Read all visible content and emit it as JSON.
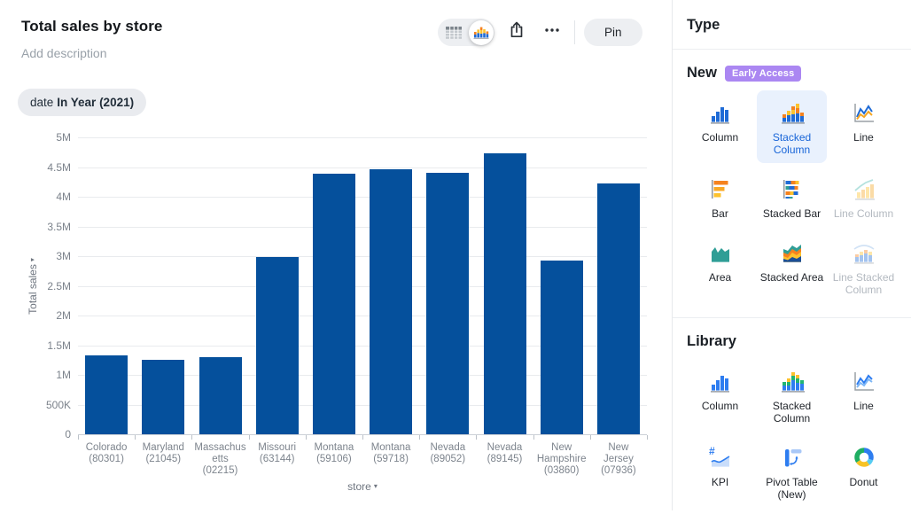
{
  "header": {
    "title": "Total sales by store",
    "description_placeholder": "Add description",
    "filter_pill": {
      "field": "date",
      "condition": "In Year (2021)"
    },
    "toolbar": {
      "pin_label": "Pin",
      "view_toggle": {
        "options": [
          "table",
          "chart"
        ],
        "selected": "chart"
      },
      "icons": [
        "table-view-icon",
        "chart-view-icon",
        "share-icon",
        "more-menu-icon"
      ]
    }
  },
  "chart_data": {
    "type": "bar",
    "title": "Total sales by store",
    "categories": [
      "Colorado (80301)",
      "Maryland (21045)",
      "Massachusetts (02215)",
      "Missouri (63144)",
      "Montana (59106)",
      "Montana (59718)",
      "Nevada (89052)",
      "Nevada (89145)",
      "New Hampshire (03860)",
      "New Jersey (07936)"
    ],
    "values": [
      1330000,
      1250000,
      1300000,
      2980000,
      4390000,
      4460000,
      4400000,
      4730000,
      2920000,
      4230000
    ],
    "xlabel": "store",
    "ylabel": "Total sales",
    "ylim": [
      0,
      5000000
    ],
    "ytick_labels": [
      "0",
      "500K",
      "1M",
      "1.5M",
      "2M",
      "2.5M",
      "3M",
      "3.5M",
      "4M",
      "4.5M",
      "5M"
    ],
    "bar_color": "#05509C",
    "grid": true,
    "legend": false,
    "filter": "date In Year (2021)"
  },
  "sidebar": {
    "title": "Type",
    "sections": [
      {
        "heading": "New",
        "badge": "Early Access",
        "items": [
          {
            "label": "Column",
            "icon": "column-icon",
            "state": "default"
          },
          {
            "label": "Stacked Column",
            "icon": "stacked-column-icon",
            "state": "selected"
          },
          {
            "label": "Line",
            "icon": "line-icon",
            "state": "default"
          },
          {
            "label": "Bar",
            "icon": "bar-icon",
            "state": "default"
          },
          {
            "label": "Stacked Bar",
            "icon": "stacked-bar-icon",
            "state": "default"
          },
          {
            "label": "Line Column",
            "icon": "line-column-icon",
            "state": "disabled"
          },
          {
            "label": "Area",
            "icon": "area-icon",
            "state": "default"
          },
          {
            "label": "Stacked Area",
            "icon": "stacked-area-icon",
            "state": "default"
          },
          {
            "label": "Line Stacked Column",
            "icon": "line-stacked-column-icon",
            "state": "disabled"
          }
        ]
      },
      {
        "heading": "Library",
        "items": [
          {
            "label": "Column",
            "icon": "column-lib-icon",
            "state": "default"
          },
          {
            "label": "Stacked Column",
            "icon": "stacked-column-lib-icon",
            "state": "default"
          },
          {
            "label": "Line",
            "icon": "line-lib-icon",
            "state": "default"
          },
          {
            "label": "KPI",
            "icon": "kpi-icon",
            "state": "default"
          },
          {
            "label": "Pivot Table (New)",
            "icon": "pivot-table-icon",
            "state": "default"
          },
          {
            "label": "Donut",
            "icon": "donut-icon",
            "state": "default"
          }
        ]
      }
    ]
  },
  "colors": {
    "bar": "#05509C",
    "accent_blue": "#1865d8",
    "selected_tile_bg": "#e9f1fd",
    "badge_bg": "#ab87f2",
    "pill_bg": "#e9ebef",
    "disabled_text": "#b3b9c0"
  }
}
